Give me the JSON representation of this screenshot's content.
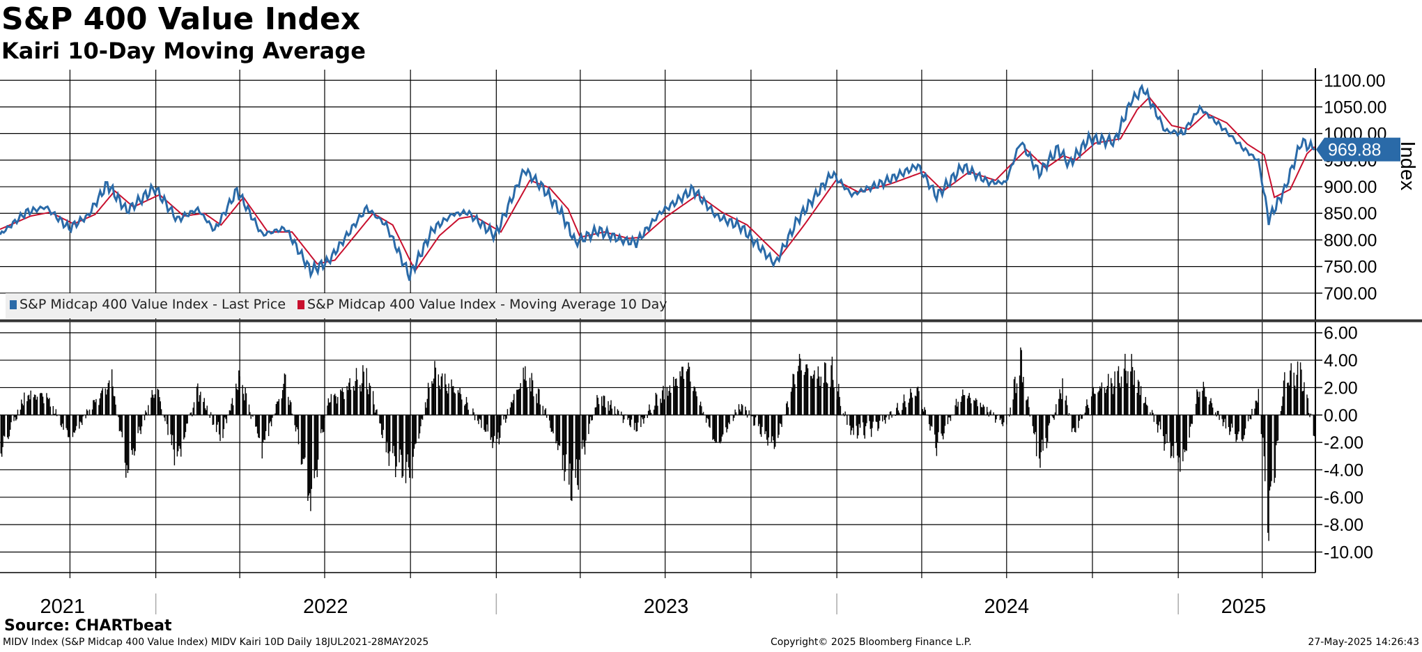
{
  "header": {
    "title": "S&P 400 Value Index",
    "subtitle": "Kairi 10-Day Moving Average"
  },
  "footer": {
    "source": "Source: CHARTbeat",
    "description": "MIDV Index (S&P Midcap 400 Value Index) MIDV Kairi 10D  Daily 18JUL2021-28MAY2025",
    "copyright": "Copyright© 2025 Bloomberg Finance L.P.",
    "timestamp": "27-May-2025 14:26:43"
  },
  "colors": {
    "price": "#2a6aa8",
    "ma": "#c8102e",
    "badge": "#2a6aa8",
    "bars": "#000000"
  },
  "chart_data": [
    {
      "type": "line",
      "x_range": [
        "2021-07-18",
        "2025-05-28"
      ],
      "ylim": [
        650,
        1120
      ],
      "y_ticks": [
        "1100.00",
        "1050.00",
        "1000.00",
        "950.00",
        "900.00",
        "850.00",
        "800.00",
        "750.00",
        "700.00"
      ],
      "y_tick_values": [
        1100,
        1050,
        1000,
        950,
        900,
        850,
        800,
        750,
        700
      ],
      "ylabel": "Index",
      "last_value_label": "969.88",
      "last_value": 969.88,
      "grid": true,
      "legend_position": "bottom-left",
      "series": [
        {
          "name": "S&P Midcap 400 Value Index - Last Price",
          "points": [
            [
              "2021-07-18",
              810
            ],
            [
              "2021-08-15",
              852
            ],
            [
              "2021-09-05",
              862
            ],
            [
              "2021-09-30",
              822
            ],
            [
              "2021-10-20",
              845
            ],
            [
              "2021-11-10",
              905
            ],
            [
              "2021-12-01",
              855
            ],
            [
              "2021-12-31",
              898
            ],
            [
              "2022-01-24",
              838
            ],
            [
              "2022-02-15",
              858
            ],
            [
              "2022-03-05",
              818
            ],
            [
              "2022-03-29",
              893
            ],
            [
              "2022-04-25",
              810
            ],
            [
              "2022-05-20",
              822
            ],
            [
              "2022-06-16",
              742
            ],
            [
              "2022-07-05",
              760
            ],
            [
              "2022-08-15",
              860
            ],
            [
              "2022-09-05",
              828
            ],
            [
              "2022-09-30",
              732
            ],
            [
              "2022-10-25",
              820
            ],
            [
              "2022-11-15",
              848
            ],
            [
              "2022-12-01",
              852
            ],
            [
              "2022-12-31",
              808
            ],
            [
              "2023-01-31",
              932
            ],
            [
              "2023-02-20",
              898
            ],
            [
              "2023-03-12",
              850
            ],
            [
              "2023-03-27",
              795
            ],
            [
              "2023-04-20",
              818
            ],
            [
              "2023-05-15",
              800
            ],
            [
              "2023-05-31",
              795
            ],
            [
              "2023-06-25",
              850
            ],
            [
              "2023-07-31",
              895
            ],
            [
              "2023-08-25",
              845
            ],
            [
              "2023-09-20",
              825
            ],
            [
              "2023-10-27",
              755
            ],
            [
              "2023-11-20",
              838
            ],
            [
              "2023-12-27",
              925
            ],
            [
              "2024-01-17",
              885
            ],
            [
              "2024-02-20",
              908
            ],
            [
              "2024-03-28",
              940
            ],
            [
              "2024-04-17",
              882
            ],
            [
              "2024-05-15",
              938
            ],
            [
              "2024-06-12",
              908
            ],
            [
              "2024-06-30",
              908
            ],
            [
              "2024-07-16",
              985
            ],
            [
              "2024-08-05",
              925
            ],
            [
              "2024-08-25",
              972
            ],
            [
              "2024-09-06",
              942
            ],
            [
              "2024-09-27",
              990
            ],
            [
              "2024-10-25",
              985
            ],
            [
              "2024-11-11",
              1060
            ],
            [
              "2024-11-25",
              1085
            ],
            [
              "2024-12-18",
              1005
            ],
            [
              "2025-01-06",
              1000
            ],
            [
              "2025-01-24",
              1048
            ],
            [
              "2025-02-15",
              1015
            ],
            [
              "2025-03-10",
              975
            ],
            [
              "2025-03-28",
              948
            ],
            [
              "2025-04-08",
              838
            ],
            [
              "2025-04-25",
              895
            ],
            [
              "2025-05-13",
              985
            ],
            [
              "2025-05-27",
              969.88
            ]
          ]
        },
        {
          "name": "S&P Midcap 400 Value Index - Moving Average 10 Day",
          "points": [
            [
              "2021-07-18",
              820
            ],
            [
              "2021-08-20",
              845
            ],
            [
              "2021-09-10",
              852
            ],
            [
              "2021-10-05",
              830
            ],
            [
              "2021-10-28",
              848
            ],
            [
              "2021-11-18",
              892
            ],
            [
              "2021-12-08",
              862
            ],
            [
              "2022-01-05",
              885
            ],
            [
              "2022-01-31",
              845
            ],
            [
              "2022-02-22",
              850
            ],
            [
              "2022-03-12",
              828
            ],
            [
              "2022-04-05",
              880
            ],
            [
              "2022-05-01",
              815
            ],
            [
              "2022-05-27",
              815
            ],
            [
              "2022-06-23",
              755
            ],
            [
              "2022-07-12",
              762
            ],
            [
              "2022-08-22",
              850
            ],
            [
              "2022-09-12",
              828
            ],
            [
              "2022-10-06",
              742
            ],
            [
              "2022-11-01",
              808
            ],
            [
              "2022-11-22",
              840
            ],
            [
              "2022-12-08",
              845
            ],
            [
              "2023-01-06",
              815
            ],
            [
              "2023-02-06",
              912
            ],
            [
              "2023-02-27",
              898
            ],
            [
              "2023-03-19",
              858
            ],
            [
              "2023-04-01",
              805
            ],
            [
              "2023-04-27",
              815
            ],
            [
              "2023-05-22",
              803
            ],
            [
              "2023-06-07",
              805
            ],
            [
              "2023-07-01",
              842
            ],
            [
              "2023-08-05",
              885
            ],
            [
              "2023-08-31",
              852
            ],
            [
              "2023-09-27",
              828
            ],
            [
              "2023-11-01",
              768
            ],
            [
              "2023-11-27",
              828
            ],
            [
              "2023-12-31",
              912
            ],
            [
              "2024-01-24",
              890
            ],
            [
              "2024-02-27",
              905
            ],
            [
              "2024-04-03",
              928
            ],
            [
              "2024-04-24",
              892
            ],
            [
              "2024-05-22",
              928
            ],
            [
              "2024-06-19",
              912
            ],
            [
              "2024-07-22",
              970
            ],
            [
              "2024-08-12",
              935
            ],
            [
              "2024-08-31",
              958
            ],
            [
              "2024-09-13",
              950
            ],
            [
              "2024-10-04",
              982
            ],
            [
              "2024-10-31",
              990
            ],
            [
              "2024-11-18",
              1045
            ],
            [
              "2024-12-01",
              1068
            ],
            [
              "2024-12-25",
              1015
            ],
            [
              "2025-01-12",
              1008
            ],
            [
              "2025-01-31",
              1038
            ],
            [
              "2025-02-22",
              1020
            ],
            [
              "2025-03-16",
              980
            ],
            [
              "2025-04-03",
              960
            ],
            [
              "2025-04-14",
              880
            ],
            [
              "2025-05-01",
              895
            ],
            [
              "2025-05-19",
              962
            ],
            [
              "2025-05-27",
              975
            ]
          ]
        }
      ]
    },
    {
      "type": "bar",
      "x_range": [
        "2021-07-18",
        "2025-05-28"
      ],
      "ylim": [
        -11.5,
        6.8
      ],
      "y_ticks": [
        "6.00",
        "4.00",
        "2.00",
        "0.00",
        "-2.00",
        "-4.00",
        "-6.00",
        "-8.00",
        "-10.00"
      ],
      "y_tick_values": [
        6,
        4,
        2,
        0,
        -2,
        -4,
        -6,
        -8,
        -10
      ],
      "grid": true,
      "profile_points": [
        [
          "2021-07-18",
          -3.8
        ],
        [
          "2021-08-15",
          2
        ],
        [
          "2021-09-05",
          2
        ],
        [
          "2021-10-01",
          -2.5
        ],
        [
          "2021-10-25",
          1
        ],
        [
          "2021-11-15",
          3.5
        ],
        [
          "2021-12-01",
          -5.5
        ],
        [
          "2022-01-01",
          3
        ],
        [
          "2022-01-24",
          -4.5
        ],
        [
          "2022-02-15",
          2.3
        ],
        [
          "2022-03-12",
          -2
        ],
        [
          "2022-04-01",
          3.5
        ],
        [
          "2022-04-25",
          -3.3
        ],
        [
          "2022-05-20",
          3.5
        ],
        [
          "2022-06-16",
          -8.2
        ],
        [
          "2022-07-05",
          1.5
        ],
        [
          "2022-08-15",
          3.8
        ],
        [
          "2022-09-05",
          -3.2
        ],
        [
          "2022-09-30",
          -5.8
        ],
        [
          "2022-10-25",
          4
        ],
        [
          "2022-11-20",
          2.5
        ],
        [
          "2022-12-31",
          -3
        ],
        [
          "2023-01-31",
          4.5
        ],
        [
          "2023-02-20",
          1
        ],
        [
          "2023-03-15",
          -5.5
        ],
        [
          "2023-03-25",
          -7
        ],
        [
          "2023-04-20",
          2
        ],
        [
          "2023-05-31",
          -1.5
        ],
        [
          "2023-06-25",
          2
        ],
        [
          "2023-07-25",
          4.5
        ],
        [
          "2023-08-25",
          -3
        ],
        [
          "2023-09-20",
          1
        ],
        [
          "2023-10-27",
          -3.2
        ],
        [
          "2023-11-20",
          4.8
        ],
        [
          "2023-12-27",
          4
        ],
        [
          "2024-01-17",
          -2
        ],
        [
          "2024-02-15",
          -1
        ],
        [
          "2024-03-28",
          2.5
        ],
        [
          "2024-04-17",
          -3.2
        ],
        [
          "2024-05-15",
          2.5
        ],
        [
          "2024-06-30",
          -1.2
        ],
        [
          "2024-07-16",
          5.3
        ],
        [
          "2024-08-05",
          -4.8
        ],
        [
          "2024-08-31",
          3
        ],
        [
          "2024-09-10",
          -2
        ],
        [
          "2024-09-30",
          2
        ],
        [
          "2024-11-11",
          4.5
        ],
        [
          "2024-12-18",
          -2.5
        ],
        [
          "2025-01-06",
          -5
        ],
        [
          "2025-01-24",
          3
        ],
        [
          "2025-02-20",
          -1
        ],
        [
          "2025-03-10",
          -2.5
        ],
        [
          "2025-03-28",
          2
        ],
        [
          "2025-04-08",
          -10
        ],
        [
          "2025-04-25",
          3.5
        ],
        [
          "2025-05-13",
          4
        ],
        [
          "2025-05-27",
          -2
        ]
      ]
    }
  ],
  "x_axis": {
    "year_labels": [
      {
        "label": "2021",
        "center": "2021-09-23"
      },
      {
        "label": "2022",
        "center": "2022-07-02"
      },
      {
        "label": "2023",
        "center": "2023-07-02"
      },
      {
        "label": "2024",
        "center": "2024-07-01"
      },
      {
        "label": "2025",
        "center": "2025-03-12"
      }
    ],
    "year_boundaries": [
      "2022-01-01",
      "2023-01-01",
      "2024-01-01",
      "2025-01-01"
    ]
  }
}
